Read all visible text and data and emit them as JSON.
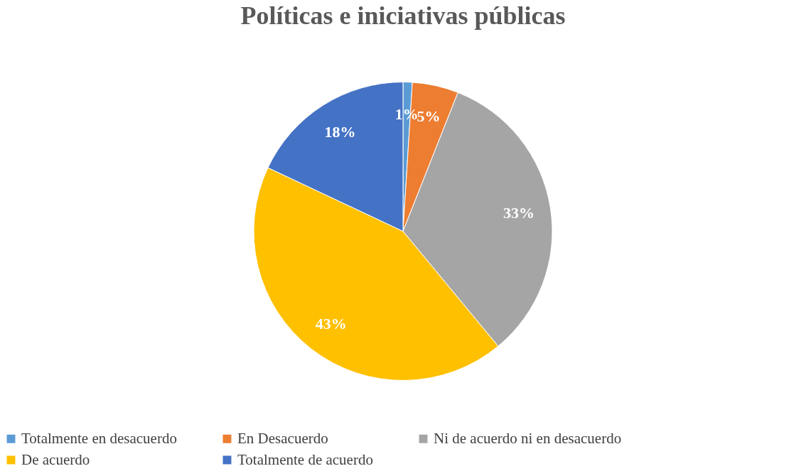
{
  "chart_data": {
    "type": "pie",
    "title": "Políticas e iniciativas públicas",
    "categories": [
      "Totalmente en desacuerdo",
      "En Desacuerdo",
      "Ni de acuerdo ni en desacuerdo",
      "De acuerdo",
      "Totalmente de acuerdo"
    ],
    "values": [
      1,
      5,
      33,
      43,
      18
    ],
    "colors": [
      "#5b9bd5",
      "#ed7d31",
      "#a5a5a5",
      "#ffc000",
      "#4472c4"
    ],
    "value_labels": [
      "1%",
      "5%",
      "33%",
      "43%",
      "18%"
    ],
    "legend": "bottom"
  }
}
